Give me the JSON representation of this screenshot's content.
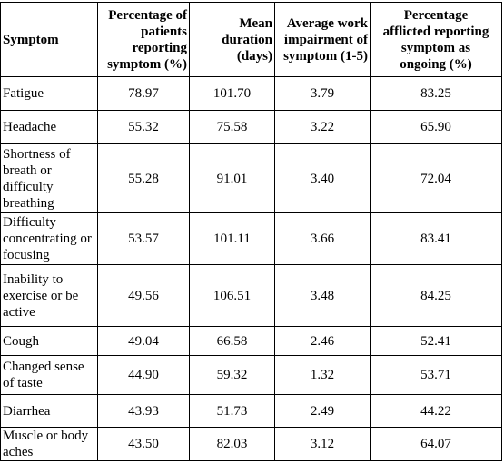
{
  "columns": {
    "symptom": "Symptom",
    "percentage": [
      "Percentage of",
      "patients",
      "reporting",
      "symptom (%)"
    ],
    "duration": [
      "Mean",
      "duration",
      "(days)"
    ],
    "impairment": [
      "Average work",
      "impairment of",
      "symptom (1-5)"
    ],
    "ongoing": [
      "Percentage",
      "afflicted reporting",
      "symptom as",
      "ongoing (%)"
    ]
  },
  "rows": [
    {
      "symptom": "Fatigue",
      "percentage": "78.97",
      "duration": "101.70",
      "impairment": "3.79",
      "ongoing": "83.25"
    },
    {
      "symptom": "Headache",
      "percentage": "55.32",
      "duration": "75.58",
      "impairment": "3.22",
      "ongoing": "65.90"
    },
    {
      "symptom": "Shortness of breath or difficulty breathing",
      "percentage": "55.28",
      "duration": "91.01",
      "impairment": "3.40",
      "ongoing": "72.04"
    },
    {
      "symptom": "Difficulty concentrating or focusing",
      "percentage": "53.57",
      "duration": "101.11",
      "impairment": "3.66",
      "ongoing": "83.41"
    },
    {
      "symptom": "Inability to exercise or be active",
      "percentage": "49.56",
      "duration": "106.51",
      "impairment": "3.48",
      "ongoing": "84.25"
    },
    {
      "symptom": "Cough",
      "percentage": "49.04",
      "duration": "66.58",
      "impairment": "2.46",
      "ongoing": "52.41"
    },
    {
      "symptom": "Changed sense of taste",
      "percentage": "44.90",
      "duration": "59.32",
      "impairment": "1.32",
      "ongoing": "53.71"
    },
    {
      "symptom": "Diarrhea",
      "percentage": "43.93",
      "duration": "51.73",
      "impairment": "2.49",
      "ongoing": "44.22"
    },
    {
      "symptom": "Muscle or body aches",
      "percentage": "43.50",
      "duration": "82.03",
      "impairment": "3.12",
      "ongoing": "64.07"
    }
  ]
}
